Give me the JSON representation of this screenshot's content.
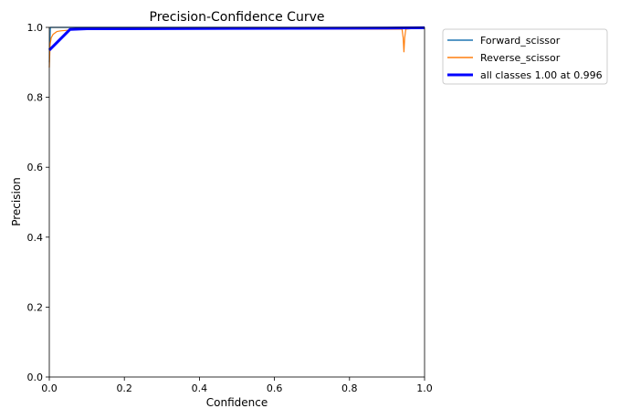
{
  "chart_data": {
    "type": "line",
    "title": "Precision-Confidence Curve",
    "xlabel": "Confidence",
    "ylabel": "Precision",
    "xlim": [
      0,
      1
    ],
    "ylim": [
      0,
      1
    ],
    "xticks": [
      "0.0",
      "0.2",
      "0.4",
      "0.6",
      "0.8",
      "1.0"
    ],
    "yticks": [
      "0.0",
      "0.2",
      "0.4",
      "0.6",
      "0.8",
      "1.0"
    ],
    "grid": false,
    "legend_position": "outside-top-right",
    "series": [
      {
        "name": "Forward_scissor",
        "color": "#1f77b4",
        "x": [
          0,
          0.003,
          0.01,
          0.05,
          1.0
        ],
        "y": [
          0.9,
          1.0,
          1.0,
          1.0,
          1.0
        ]
      },
      {
        "name": "Reverse_scissor",
        "color": "#ff7f0e",
        "x": [
          0,
          0.002,
          0.005,
          0.01,
          0.02,
          0.03,
          0.05,
          0.1,
          0.94,
          0.943,
          0.945,
          0.947,
          0.95,
          1.0
        ],
        "y": [
          0.885,
          0.95,
          0.97,
          0.98,
          0.988,
          0.99,
          0.992,
          0.995,
          0.995,
          0.97,
          0.93,
          0.97,
          0.995,
          1.0
        ]
      },
      {
        "name": "all classes 1.00 at 0.996",
        "color": "#0000ff",
        "bold": true,
        "x": [
          0,
          0.055,
          0.1,
          0.5,
          0.9,
          1.0
        ],
        "y": [
          0.935,
          0.994,
          0.996,
          0.997,
          0.998,
          0.999
        ]
      }
    ]
  }
}
